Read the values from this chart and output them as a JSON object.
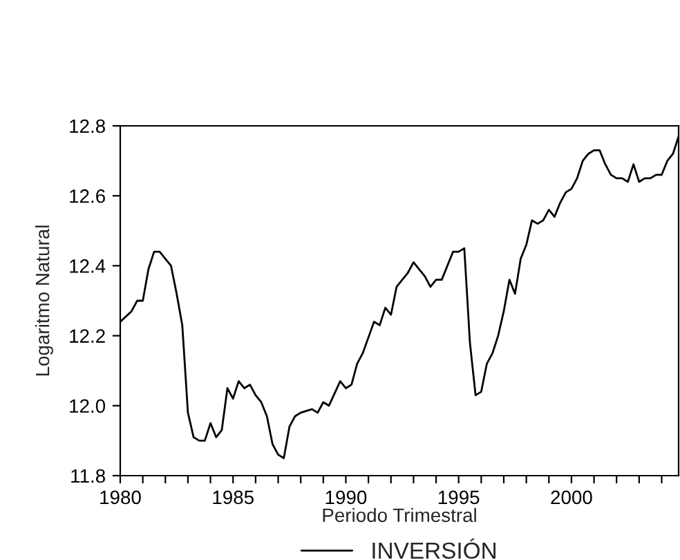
{
  "chart_data": {
    "type": "line",
    "xlabel": "Periodo Trimestral",
    "ylabel": "Logaritmo Natural",
    "xlim": [
      1980,
      2004.75
    ],
    "xticks": [
      1980,
      {
        "value": 1981,
        "label": null
      },
      {
        "value": 1982,
        "label": null
      },
      {
        "value": 1983,
        "label": null
      },
      {
        "value": 1984,
        "label": null
      },
      1985,
      {
        "value": 1986,
        "label": null
      },
      {
        "value": 1987,
        "label": null
      },
      {
        "value": 1988,
        "label": null
      },
      {
        "value": 1989,
        "label": null
      },
      1990,
      {
        "value": 1991,
        "label": null
      },
      {
        "value": 1992,
        "label": null
      },
      {
        "value": 1993,
        "label": null
      },
      {
        "value": 1994,
        "label": null
      },
      1995,
      {
        "value": 1996,
        "label": null
      },
      {
        "value": 1997,
        "label": null
      },
      {
        "value": 1998,
        "label": null
      },
      {
        "value": 1999,
        "label": null
      },
      2000,
      {
        "value": 2001,
        "label": null
      },
      {
        "value": 2002,
        "label": null
      },
      {
        "value": 2003,
        "label": null
      },
      {
        "value": 2004,
        "label": null
      }
    ],
    "ylim": [
      11.8,
      12.8
    ],
    "yticks": [
      11.8,
      {
        "value": 12.0,
        "label": "12.0"
      },
      12.2,
      12.4,
      12.6,
      12.8
    ],
    "grid": false,
    "legend": "bottom",
    "marker": "none",
    "line_style": "solid",
    "series": [
      {
        "name": "INVERSIÓN",
        "color": "#000000",
        "x": [
          1980.0,
          1980.5,
          1980.75,
          1981.0,
          1981.25,
          1981.5,
          1981.75,
          1982.0,
          1982.25,
          1982.5,
          1982.75,
          1983.0,
          1983.25,
          1983.5,
          1983.75,
          1984.0,
          1984.25,
          1984.5,
          1984.75,
          1985.0,
          1985.25,
          1985.5,
          1985.75,
          1986.0,
          1986.25,
          1986.5,
          1986.75,
          1987.0,
          1987.25,
          1987.5,
          1987.75,
          1988.0,
          1988.5,
          1988.75,
          1989.0,
          1989.25,
          1989.75,
          1990.0,
          1990.25,
          1990.5,
          1990.75,
          1991.25,
          1991.5,
          1991.75,
          1992.0,
          1992.25,
          1992.5,
          1992.75,
          1993.0,
          1993.5,
          1993.75,
          1994.0,
          1994.25,
          1994.75,
          1995.0,
          1995.25,
          1995.5,
          1995.75,
          1996.0,
          1996.25,
          1996.5,
          1996.75,
          1997.0,
          1997.25,
          1997.5,
          1997.75,
          1998.0,
          1998.25,
          1998.5,
          1998.75,
          1999.0,
          1999.25,
          1999.5,
          1999.75,
          2000.0,
          2000.25,
          2000.5,
          2000.75,
          2001.0,
          2001.25,
          2001.5,
          2001.75,
          2002.0,
          2002.25,
          2002.5,
          2002.75,
          2003.0,
          2003.25,
          2003.5,
          2003.75,
          2004.0,
          2004.25,
          2004.5,
          2004.75
        ],
        "values": [
          12.24,
          12.27,
          12.3,
          12.3,
          12.39,
          12.44,
          12.44,
          12.42,
          12.4,
          12.32,
          12.23,
          11.98,
          11.91,
          11.9,
          11.9,
          11.95,
          11.91,
          11.93,
          12.05,
          12.02,
          12.07,
          12.05,
          12.06,
          12.03,
          12.01,
          11.97,
          11.89,
          11.86,
          11.85,
          11.94,
          11.97,
          11.98,
          11.99,
          11.98,
          12.01,
          12.0,
          12.07,
          12.05,
          12.06,
          12.12,
          12.15,
          12.24,
          12.23,
          12.28,
          12.26,
          12.34,
          12.36,
          12.38,
          12.41,
          12.37,
          12.34,
          12.36,
          12.36,
          12.44,
          12.44,
          12.45,
          12.18,
          12.03,
          12.04,
          12.12,
          12.15,
          12.2,
          12.27,
          12.36,
          12.32,
          12.42,
          12.46,
          12.53,
          12.52,
          12.53,
          12.56,
          12.54,
          12.58,
          12.61,
          12.62,
          12.65,
          12.7,
          12.72,
          12.73,
          12.73,
          12.69,
          12.66,
          12.65,
          12.65,
          12.64,
          12.69,
          12.64,
          12.65,
          12.65,
          12.66,
          12.66,
          12.7,
          12.72,
          12.77
        ]
      }
    ]
  }
}
